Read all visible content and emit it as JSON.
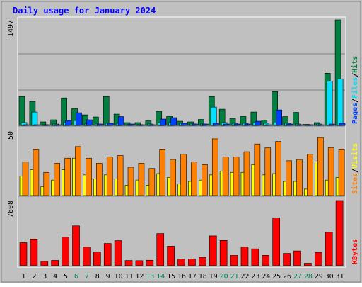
{
  "chart_data": {
    "type": "bar",
    "title": "Daily usage for January 2024",
    "categories": [
      "1",
      "2",
      "3",
      "4",
      "5",
      "6",
      "7",
      "8",
      "9",
      "10",
      "11",
      "12",
      "13",
      "14",
      "15",
      "16",
      "17",
      "18",
      "19",
      "20",
      "21",
      "22",
      "23",
      "24",
      "25",
      "26",
      "27",
      "28",
      "29",
      "30",
      "31"
    ],
    "weekend_days": [
      "6",
      "7",
      "13",
      "14",
      "20",
      "21",
      "27",
      "28"
    ],
    "panels": [
      {
        "name": "hits-files-pages",
        "ymax_label": "1497",
        "ylim": [
          0,
          1497
        ],
        "series": [
          {
            "name": "Hits",
            "color": "#008040",
            "values": [
              410,
              340,
              50,
              80,
              390,
              240,
              150,
              120,
              410,
              160,
              40,
              40,
              65,
              200,
              130,
              60,
              50,
              85,
              410,
              230,
              100,
              130,
              190,
              75,
              480,
              125,
              185,
              15,
              40,
              740,
              1497
            ]
          },
          {
            "name": "Files",
            "color": "#00e0ff",
            "values": [
              40,
              190,
              10,
              20,
              40,
              70,
              20,
              20,
              30,
              30,
              10,
              10,
              20,
              40,
              40,
              30,
              20,
              20,
              260,
              40,
              30,
              30,
              40,
              30,
              50,
              30,
              20,
              10,
              20,
              630,
              660
            ]
          },
          {
            "name": "Pages",
            "color": "#0040ff",
            "values": [
              10,
              10,
              5,
              10,
              70,
              180,
              80,
              20,
              30,
              125,
              20,
              10,
              10,
              90,
              110,
              30,
              20,
              20,
              30,
              20,
              20,
              20,
              60,
              10,
              220,
              20,
              10,
              5,
              10,
              20,
              30
            ]
          }
        ],
        "axis_legend": [
          "Pages",
          "Files",
          "Hits"
        ]
      },
      {
        "name": "visits-sites",
        "ymax_label": "50",
        "ylim": [
          0,
          50
        ],
        "series": [
          {
            "name": "Visits",
            "color": "#ffff00",
            "values": [
              15,
              20,
              7,
              12,
              20,
              29,
              16,
              13,
              16,
              13,
              8,
              12,
              8,
              17,
              14,
              9,
              11,
              12,
              16,
              19,
              18,
              18,
              24,
              16,
              17,
              11,
              11,
              5,
              26,
              12,
              14
            ]
          },
          {
            "name": "Sites",
            "color": "#ff8000",
            "values": [
              26,
              36,
              18,
              25,
              29,
              38,
              29,
              25,
              30,
              31,
              22,
              25,
              21,
              36,
              28,
              32,
              26,
              24,
              44,
              30,
              30,
              34,
              40,
              37,
              42,
              27,
              28,
              32,
              45,
              37,
              36
            ]
          }
        ],
        "axis_legend": [
          "Sites",
          "Visits"
        ]
      },
      {
        "name": "kbytes",
        "ymax_label": "7608",
        "ylim": [
          0,
          7608
        ],
        "series": [
          {
            "name": "KBytes",
            "color": "#ff0000",
            "values": [
              2690,
              3120,
              510,
              620,
              3350,
              4650,
              2190,
              1590,
              2600,
              2930,
              610,
              590,
              640,
              3750,
              2280,
              780,
              800,
              990,
              3480,
              2950,
              1200,
              2190,
              1970,
              1210,
              5570,
              1440,
              1730,
              290,
              1560,
              3900,
              7608
            ]
          }
        ],
        "axis_legend": [
          "KBytes"
        ]
      }
    ],
    "colors": {
      "title": "#0000ff",
      "background": "#c0c0c0",
      "weekday_label": "#000000",
      "weekend_label": "#00805c",
      "gridline": "#808080",
      "separator": "#808080"
    }
  }
}
